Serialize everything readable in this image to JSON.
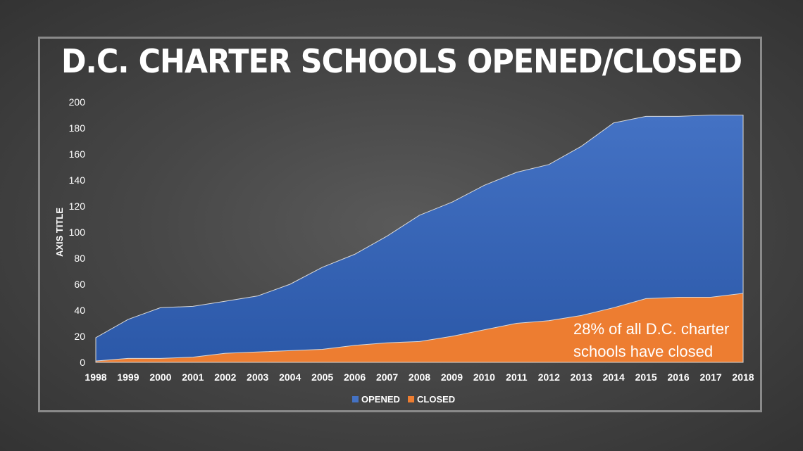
{
  "chart_data": {
    "type": "area",
    "title": "D.C. CHARTER SCHOOLS OPENED/CLOSED",
    "ylabel": "AXIS TITLE",
    "xlabel": "",
    "ylim": [
      0,
      200
    ],
    "yticks": [
      0,
      20,
      40,
      60,
      80,
      100,
      120,
      140,
      160,
      180,
      200
    ],
    "categories": [
      "1998",
      "1999",
      "2000",
      "2001",
      "2002",
      "2003",
      "2004",
      "2005",
      "2006",
      "2007",
      "2008",
      "2009",
      "2010",
      "2011",
      "2012",
      "2013",
      "2014",
      "2015",
      "2016",
      "2017",
      "2018"
    ],
    "series": [
      {
        "name": "OPENED",
        "color": "#4472c4",
        "values": [
          19,
          33,
          42,
          43,
          47,
          51,
          60,
          73,
          83,
          97,
          113,
          123,
          136,
          146,
          152,
          166,
          184,
          189,
          189,
          190,
          190
        ]
      },
      {
        "name": "CLOSED",
        "color": "#ed7d31",
        "values": [
          1,
          3,
          3,
          4,
          7,
          8,
          9,
          10,
          13,
          15,
          16,
          20,
          25,
          30,
          32,
          36,
          42,
          49,
          50,
          50,
          53
        ]
      }
    ],
    "grid": false,
    "legend": "bottom-center",
    "annotation": {
      "lines": [
        "28% of all D.C. charter",
        "schools have closed"
      ]
    }
  }
}
